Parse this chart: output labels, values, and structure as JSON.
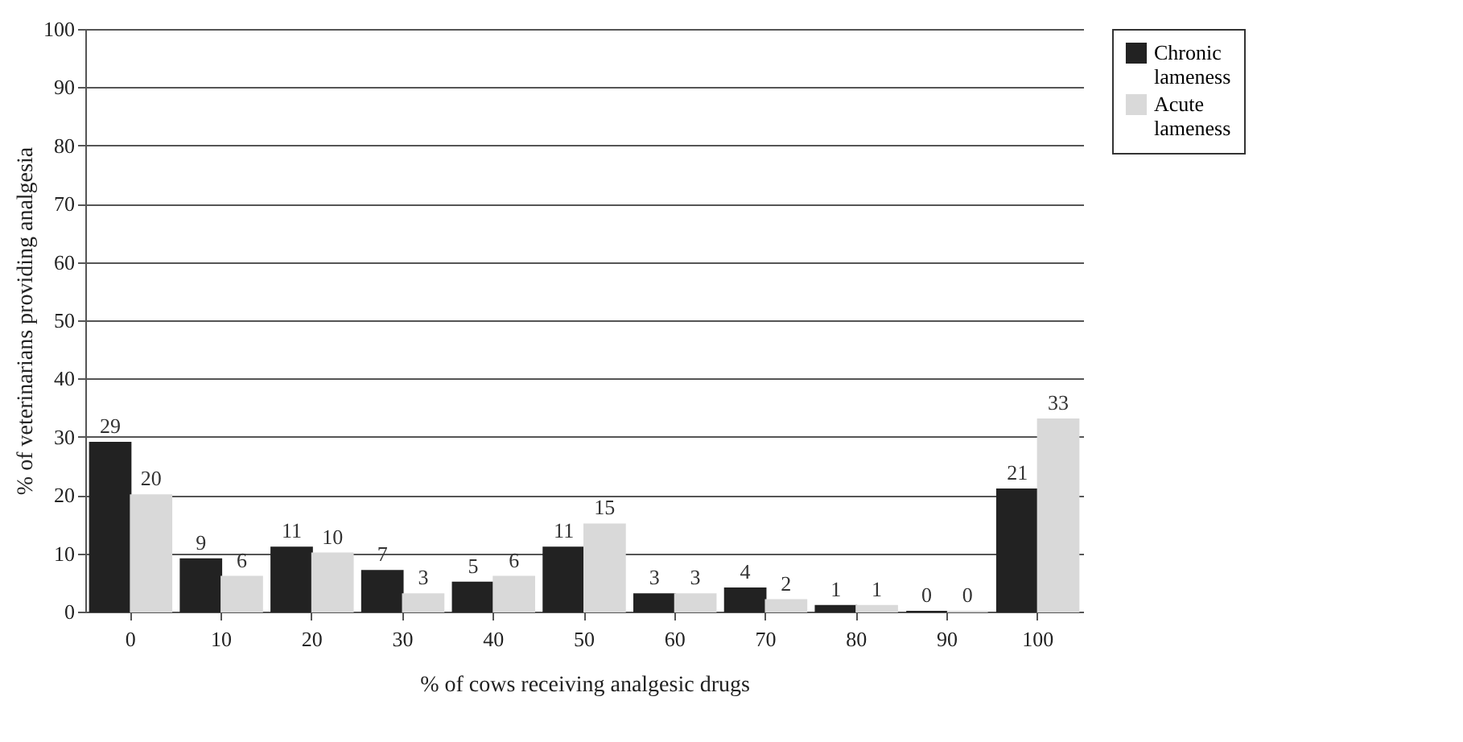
{
  "chart_data": {
    "type": "bar",
    "xlabel": "% of cows receiving analgesic drugs",
    "ylabel": "% of veterinarians providing analgesia",
    "categories": [
      "0",
      "10",
      "20",
      "30",
      "40",
      "50",
      "60",
      "70",
      "80",
      "90",
      "100"
    ],
    "series": [
      {
        "name": "Chronic lameness",
        "color": "#222222",
        "values": [
          29,
          9,
          11,
          7,
          5,
          11,
          3,
          4,
          1,
          0,
          21
        ]
      },
      {
        "name": "Acute lameness",
        "color": "#d9d9d9",
        "values": [
          20,
          6,
          10,
          3,
          6,
          15,
          3,
          2,
          1,
          0,
          33
        ]
      }
    ],
    "ylim": [
      0,
      100
    ],
    "yticks": [
      0,
      10,
      20,
      30,
      40,
      50,
      60,
      70,
      80,
      90,
      100
    ],
    "grid": "y",
    "legend": "right",
    "data_labels": true
  }
}
